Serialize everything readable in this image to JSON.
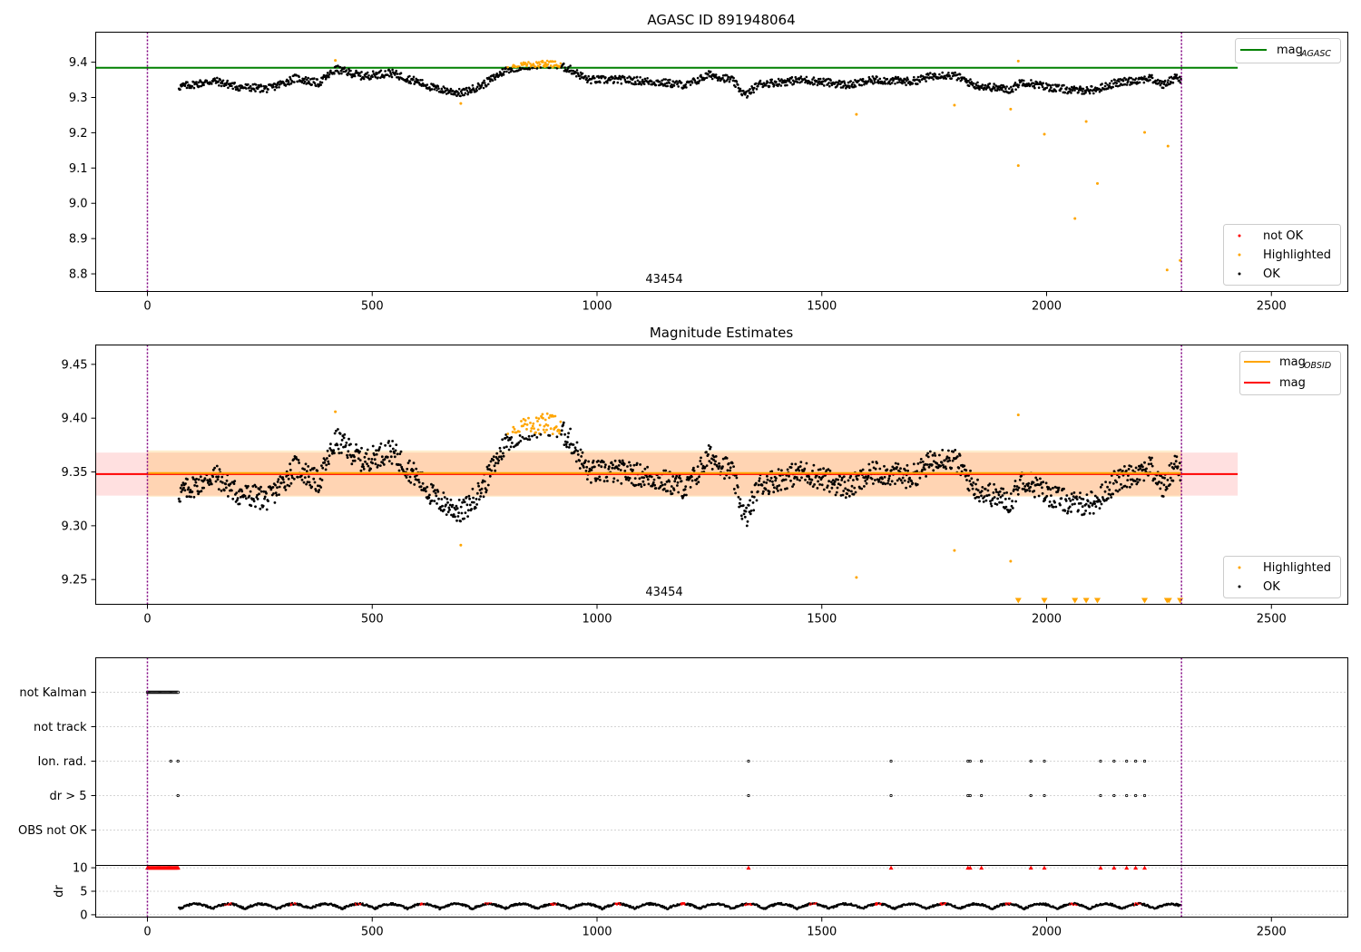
{
  "chart_data": [
    {
      "type": "scatter",
      "title": "AGASC ID 891948064",
      "x_ticks": [
        0,
        500,
        1000,
        1500,
        2000,
        2500
      ],
      "y_ticks": [
        9.4,
        9.3,
        9.2,
        9.1,
        9.0,
        8.9,
        8.8
      ],
      "y_tick_labels": [
        "9.4",
        "9.3",
        "9.2",
        "9.1",
        "9.0",
        "8.9",
        "8.8"
      ],
      "xlim": [
        -115,
        2670
      ],
      "ylim": [
        8.75,
        9.485
      ],
      "annotation": "43454",
      "vlines": [
        0,
        2300
      ],
      "mag_agasc": 9.384,
      "legend_top": {
        "position": "upper right",
        "entries": [
          {
            "label": "mag",
            "subscript": "AGASC",
            "color": "#008000"
          }
        ]
      },
      "legend_bottom": {
        "position": "lower right",
        "entries": [
          {
            "label": "not OK",
            "color": "#ff0000"
          },
          {
            "label": "Highlighted",
            "color": "#ffa500"
          },
          {
            "label": "OK",
            "color": "#000000"
          }
        ]
      },
      "highlighted_points": [
        [
          418,
          9.405
        ],
        [
          697,
          9.283
        ],
        [
          1577,
          9.252
        ],
        [
          1795,
          9.278
        ],
        [
          1920,
          9.267
        ],
        [
          1937,
          9.403
        ],
        [
          1937,
          9.107
        ],
        [
          1995,
          9.196
        ],
        [
          2063,
          8.957
        ],
        [
          2088,
          9.232
        ],
        [
          2113,
          9.056
        ],
        [
          2218,
          9.201
        ],
        [
          2268,
          8.811
        ],
        [
          2270,
          9.162
        ],
        [
          2297,
          8.838
        ]
      ]
    },
    {
      "type": "scatter",
      "title": "Magnitude Estimates",
      "x_ticks": [
        0,
        500,
        1000,
        1500,
        2000,
        2500
      ],
      "y_ticks": [
        9.45,
        9.4,
        9.35,
        9.3,
        9.25
      ],
      "y_tick_labels": [
        "9.45",
        "9.40",
        "9.35",
        "9.30",
        "9.25"
      ],
      "xlim": [
        -115,
        2670
      ],
      "ylim": [
        9.227,
        9.468
      ],
      "annotation": "43454",
      "vlines": [
        0,
        2300
      ],
      "mag": 9.348,
      "mag_band": [
        9.328,
        9.368
      ],
      "obsid_mag": 9.349,
      "obsid_range": [
        0,
        2300
      ],
      "obsid_band": [
        9.327,
        9.37
      ],
      "legend_top": {
        "position": "upper right",
        "entries": [
          {
            "label": "mag",
            "subscript": "OBSID",
            "color": "#ffa500"
          },
          {
            "label": "mag",
            "subscript": "",
            "color": "#ff0000"
          }
        ]
      },
      "legend_bottom": {
        "position": "lower right",
        "entries": [
          {
            "label": "Highlighted",
            "color": "#ffa500"
          },
          {
            "label": "OK",
            "color": "#000000"
          }
        ]
      },
      "highlighted_points": [
        [
          418,
          9.406
        ],
        [
          697,
          9.282
        ],
        [
          1577,
          9.252
        ],
        [
          1795,
          9.277
        ],
        [
          1920,
          9.267
        ],
        [
          1937,
          9.403
        ]
      ],
      "clipped_markers_x": [
        1937,
        1995,
        2063,
        2088,
        2113,
        2218,
        2268,
        2272,
        2297
      ]
    },
    {
      "type": "scatter",
      "title": "",
      "x_ticks": [
        0,
        500,
        1000,
        1500,
        2000,
        2500
      ],
      "xlim": [
        -115,
        2670
      ],
      "vlines": [
        0,
        2300
      ],
      "flag_rows": [
        "not Kalman",
        "not track",
        "Ion. rad.",
        "dr > 5",
        "OBS not OK"
      ],
      "not_kalman_range": [
        0,
        70
      ],
      "ion_rad_x": [
        52,
        68,
        1337,
        1654,
        1825,
        1830,
        1855,
        1965,
        1995,
        2120,
        2150,
        2178,
        2198,
        2218
      ],
      "dr_gt5_x": [
        68,
        1337,
        1654,
        1825,
        1830,
        1855,
        1965,
        1995,
        2120,
        2150,
        2178,
        2198,
        2218
      ],
      "dr_ylabel": "dr",
      "dr_y_ticks": [
        10,
        5,
        0
      ],
      "dr_ylim": [
        -0.5,
        10.5
      ],
      "dr_clipped_x": [
        1337,
        1654,
        1825,
        1830,
        1855,
        1965,
        1995,
        2120,
        2150,
        2178,
        2198,
        2218
      ]
    }
  ]
}
